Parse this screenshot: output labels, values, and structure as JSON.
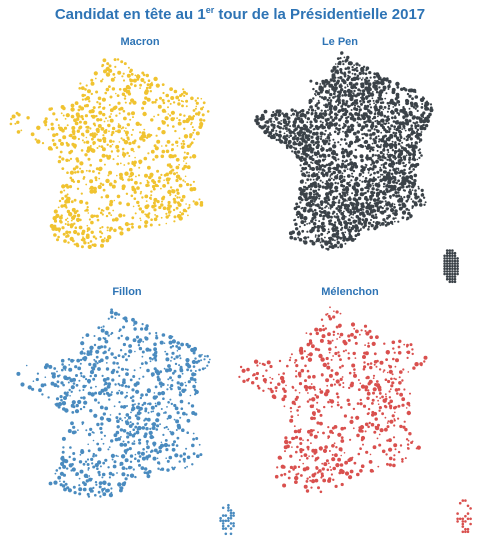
{
  "title": {
    "prefix": "Candidat en tête au 1",
    "superscript": "er",
    "suffix": " tour de la Présidentielle 2017"
  },
  "maps": [
    {
      "key": "macron",
      "label": "Macron",
      "color": "#f0c330",
      "density": 0.38
    },
    {
      "key": "lepen",
      "label": "Le Pen",
      "color": "#3b4248",
      "density": 0.92
    },
    {
      "key": "fillon",
      "label": "Fillon",
      "color": "#4a8bbf",
      "density": 0.36
    },
    {
      "key": "melenchon",
      "label": "Mélenchon",
      "color": "#d9504e",
      "density": 0.28
    }
  ]
}
